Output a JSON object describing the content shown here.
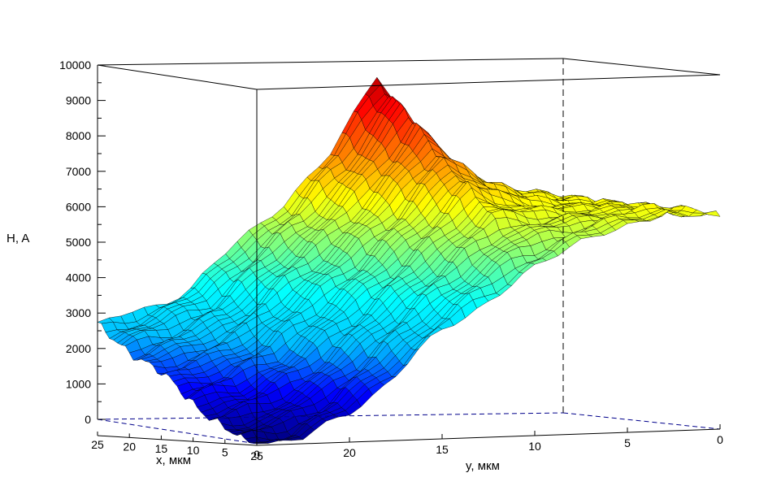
{
  "chart_data": {
    "type": "surface3d",
    "zlabel": "H, A",
    "xlabel": "x, мкм",
    "ylabel": "y, мкм",
    "zlim": [
      0,
      10000
    ],
    "xlim": [
      0,
      25
    ],
    "ylim": [
      0,
      25
    ],
    "z_ticks": [
      0,
      1000,
      2000,
      3000,
      4000,
      5000,
      6000,
      7000,
      8000,
      9000,
      10000
    ],
    "x_ticks": [
      25,
      20,
      15,
      10,
      5,
      0
    ],
    "y_ticks": [
      25,
      20,
      15,
      10,
      5,
      0
    ],
    "colormap": [
      "#000080",
      "#0000ff",
      "#00bfff",
      "#00ffff",
      "#7fff7f",
      "#ffff00",
      "#ff8000",
      "#ff0000",
      "#800000"
    ],
    "surface_profile": {
      "y": [
        25,
        22.5,
        20,
        17.5,
        15,
        12.5,
        10,
        7.5,
        5,
        2.5,
        0
      ],
      "z_near_x0": [
        0,
        200,
        900,
        1900,
        3000,
        3900,
        4700,
        5400,
        5900,
        6200,
        6000
      ],
      "z_far_x25": [
        2600,
        3100,
        3700,
        4900,
        6000,
        7500,
        9500,
        7500,
        6500,
        6200,
        6000
      ]
    }
  }
}
